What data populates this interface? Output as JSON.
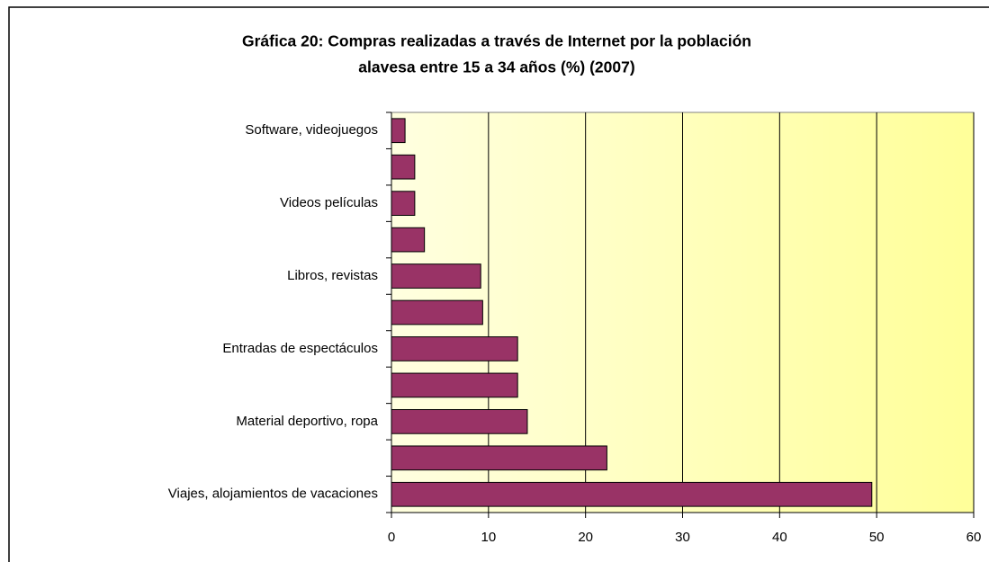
{
  "chart_data": {
    "type": "hbar",
    "title": [
      "Gráfica 20: Compras realizadas a través de Internet por la población",
      "alavesa entre 15 a 34 años (%) (2007)"
    ],
    "categories": [
      "Viajes, alojamientos de vacaciones",
      null,
      "Material deportivo, ropa",
      null,
      "Entradas de espectáculos",
      null,
      "Libros, revistas",
      null,
      "Videos películas",
      null,
      "Software, videojuegos"
    ],
    "values": [
      49.5,
      22.2,
      14,
      13,
      13,
      9.4,
      9.2,
      3.4,
      2.4,
      2.4,
      1.4
    ],
    "color": "#993366",
    "xlim": [
      0,
      60
    ],
    "xticks": [
      0,
      10,
      20,
      30,
      40,
      50,
      60
    ],
    "grid": true
  }
}
